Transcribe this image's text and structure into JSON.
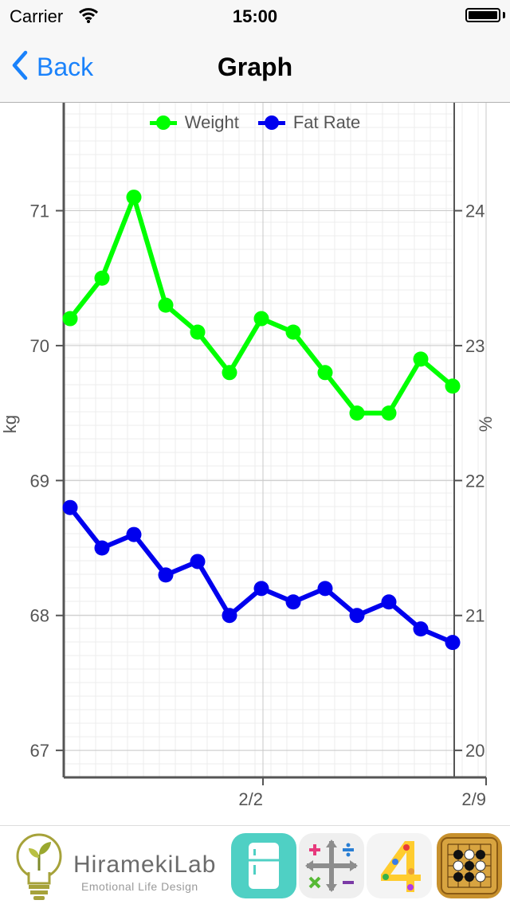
{
  "status_bar": {
    "carrier": "Carrier",
    "time": "15:00"
  },
  "nav": {
    "back_label": "Back",
    "title": "Graph"
  },
  "chart_data": {
    "type": "line",
    "legend_position": "top-center",
    "grid": true,
    "x_ticks": [
      "2/2",
      "2/9"
    ],
    "y_left": {
      "label": "kg",
      "ticks": [
        67,
        68,
        69,
        70,
        71
      ],
      "range": [
        66.8,
        71.8
      ]
    },
    "y_right": {
      "label": "%",
      "ticks": [
        20,
        21,
        22,
        23,
        24
      ],
      "range": [
        19.8,
        24.8
      ]
    },
    "series": [
      {
        "name": "Weight",
        "axis": "left",
        "color": "#00ff00",
        "values": [
          70.2,
          70.5,
          71.1,
          70.3,
          70.1,
          69.8,
          70.2,
          70.1,
          69.8,
          69.5,
          69.5,
          69.9,
          69.7
        ]
      },
      {
        "name": "Fat Rate",
        "axis": "right",
        "color": "#0000ee",
        "values": [
          21.8,
          21.5,
          21.6,
          21.3,
          21.4,
          21.0,
          21.2,
          21.1,
          21.2,
          21.0,
          21.1,
          20.9,
          20.8
        ]
      }
    ]
  },
  "ad_bar": {
    "brand_name": "HiramekiLab",
    "brand_tagline": "Emotional Life Design",
    "apps": [
      {
        "name": "fridge-app-icon",
        "color": "#4fd0c4"
      },
      {
        "name": "math-app-icon",
        "color": "#efefef"
      },
      {
        "name": "four-app-icon",
        "color": "#f4f4f4"
      },
      {
        "name": "go-game-app-icon",
        "color": "#c8912d"
      }
    ]
  }
}
